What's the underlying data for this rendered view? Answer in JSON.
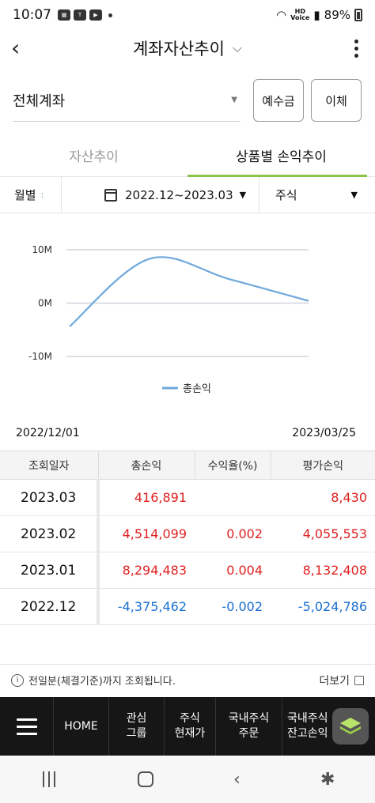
{
  "status_bar": {
    "time": "10:07",
    "battery": "89%",
    "hd_label": "HD",
    "voice_label": "Voice"
  },
  "header": {
    "title": "계좌자산추이"
  },
  "account": {
    "name": "전체계좌",
    "deposit_button": "예수금",
    "transfer_button": "이체"
  },
  "tabs": [
    {
      "label": "자산추이",
      "active": false
    },
    {
      "label": "상품별 손익추이",
      "active": true
    }
  ],
  "filters": {
    "period": "월별",
    "date_range": "2022.12~2023.03",
    "product": "주식"
  },
  "chart_data": {
    "type": "line",
    "x": [
      "2022.12",
      "2023.01",
      "2023.02",
      "2023.03"
    ],
    "series": [
      {
        "name": "총손익",
        "values": [
          -4375462,
          8294483,
          4514099,
          416891
        ],
        "color": "#6fa8dc"
      }
    ],
    "ylim": [
      -10000000,
      10000000
    ],
    "yticks": [
      10000000,
      0,
      -10000000
    ],
    "ytick_labels": [
      "10M",
      "0M",
      "-10M"
    ],
    "grid": true,
    "legend": "bottom-center"
  },
  "date_span": {
    "start": "2022/12/01",
    "end": "2023/03/25"
  },
  "table": {
    "headers": [
      "조회일자",
      "총손익",
      "수익율(%)",
      "평가손익"
    ],
    "rows": [
      {
        "date": "2023.03",
        "total": "416,891",
        "rate": "",
        "eval": "8,430",
        "total_color": "red",
        "rate_color": "red",
        "eval_color": "red"
      },
      {
        "date": "2023.02",
        "total": "4,514,099",
        "rate": "0.002",
        "eval": "4,055,553",
        "total_color": "red",
        "rate_color": "red",
        "eval_color": "red"
      },
      {
        "date": "2023.01",
        "total": "8,294,483",
        "rate": "0.004",
        "eval": "8,132,408",
        "total_color": "red",
        "rate_color": "red",
        "eval_color": "red"
      },
      {
        "date": "2022.12",
        "total": "-4,375,462",
        "rate": "-0.002",
        "eval": "-5,024,786",
        "total_color": "blue",
        "rate_color": "blue",
        "eval_color": "blue"
      }
    ]
  },
  "info": {
    "notice": "전일분(체결기준)까지 조회됩니다.",
    "more": "더보기"
  },
  "bottom_nav": {
    "items": [
      {
        "line1": "HOME",
        "line2": ""
      },
      {
        "line1": "관심",
        "line2": "그룹"
      },
      {
        "line1": "주식",
        "line2": "현재가"
      },
      {
        "line1": "국내주식",
        "line2": "주문"
      },
      {
        "line1": "국내주식",
        "line2": "잔고손익"
      }
    ]
  },
  "colors": {
    "accent": "#8bc34a",
    "positive": "#e02020",
    "negative": "#1a6fd0",
    "line": "#6fa8dc"
  }
}
